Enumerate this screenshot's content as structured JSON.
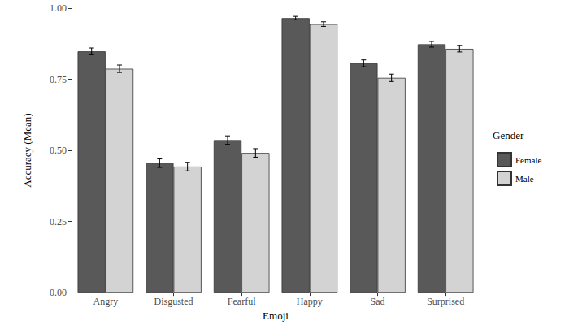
{
  "chart_data": {
    "type": "bar",
    "x_label": "Emoji",
    "y_label": "Accuracy (Mean)",
    "legend_title": "Gender",
    "categories": [
      "Angry",
      "Disgusted",
      "Fearful",
      "Happy",
      "Sad",
      "Surprised"
    ],
    "series": [
      {
        "name": "Female",
        "color": "#595959",
        "values": [
          0.848,
          0.455,
          0.536,
          0.965,
          0.806,
          0.873
        ],
        "errors": [
          0.012,
          0.015,
          0.015,
          0.006,
          0.012,
          0.01
        ]
      },
      {
        "name": "Male",
        "color": "#d3d3d3",
        "values": [
          0.787,
          0.443,
          0.491,
          0.944,
          0.755,
          0.857
        ],
        "errors": [
          0.013,
          0.015,
          0.015,
          0.008,
          0.013,
          0.011
        ]
      }
    ],
    "ylim": [
      0,
      1
    ],
    "yticks": [
      {
        "value": 0,
        "label": "0.00"
      },
      {
        "value": 0.25,
        "label": "0.25"
      },
      {
        "value": 0.5,
        "label": "0.50"
      },
      {
        "value": 0.75,
        "label": "0.75"
      },
      {
        "value": 1,
        "label": "1.00"
      }
    ],
    "grid": false,
    "legend": "right"
  }
}
